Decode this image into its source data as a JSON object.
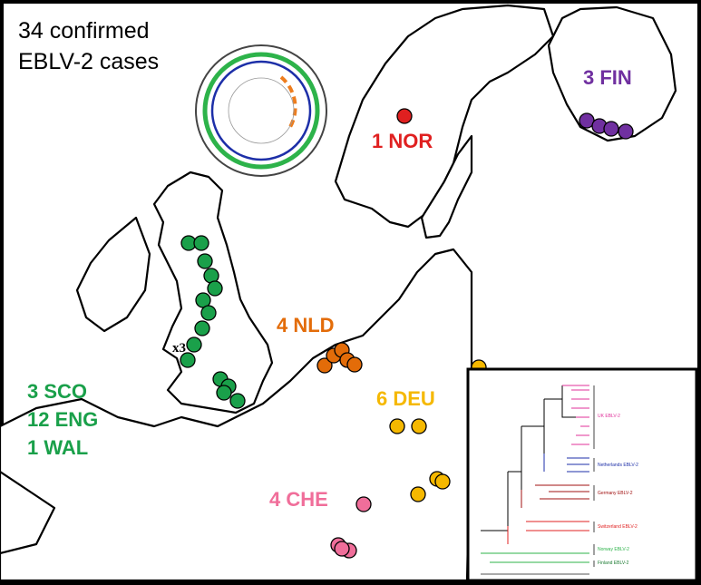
{
  "title": [
    "34 confirmed",
    "EBLV-2 cases"
  ],
  "labels": {
    "fin": "3 FIN",
    "nor": "1 NOR",
    "nld": "4 NLD",
    "deu": "6 DEU",
    "che": "4 CHE",
    "sco": "3 SCO",
    "eng": "12 ENG",
    "wal": "1 WAL",
    "multiple": "x3"
  },
  "inset_tree": {
    "clades": [
      "UK EBLV-2",
      "Netherlands EBLV-2",
      "Germany EBLV-2",
      "Switzerland EBLV-2",
      "Norway EBLV-2",
      "Finland EBLV-2"
    ]
  }
}
